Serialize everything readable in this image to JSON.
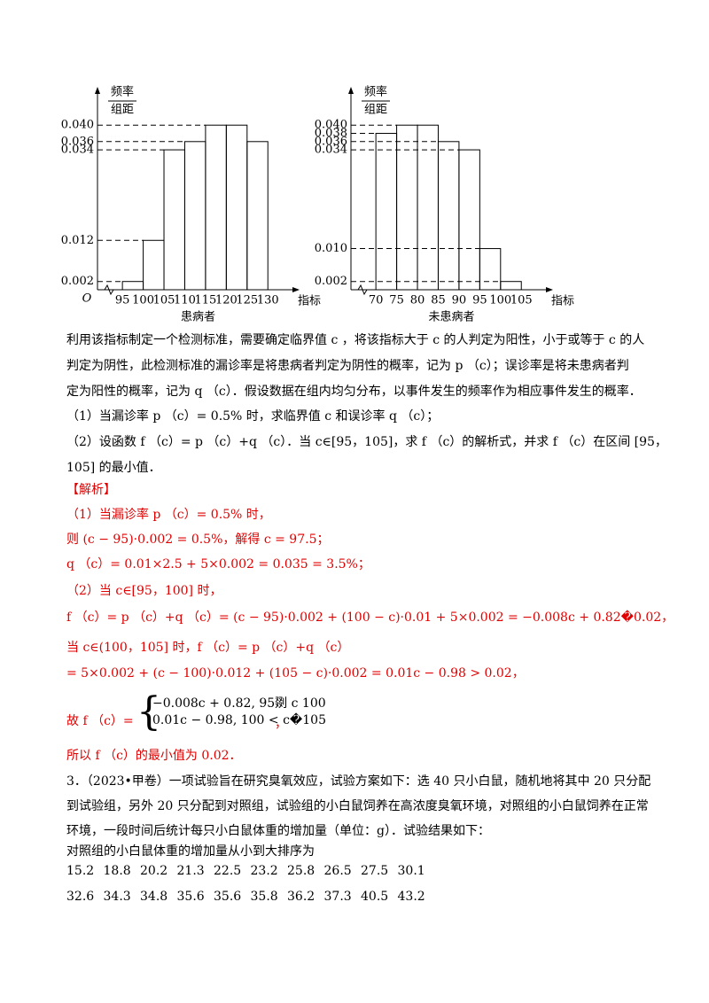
{
  "chart_data": [
    {
      "type": "histogram",
      "y_label_top": "频率",
      "y_label_bottom": "组距",
      "x_label": "指标",
      "caption": "患病者",
      "origin": "O",
      "bins": [
        95,
        100,
        105,
        110,
        115,
        120,
        125,
        130
      ],
      "values": [
        0.002,
        0.012,
        0.034,
        0.036,
        0.04,
        0.04,
        0.036
      ],
      "xlim": [
        89,
        134
      ],
      "ylim": [
        0,
        0.045
      ],
      "yticks": [
        0.002,
        0.012,
        0.034,
        0.036,
        {
          "value": 0.04,
          "label": "0.040"
        }
      ]
    },
    {
      "type": "histogram",
      "y_label_top": "频率",
      "y_label_bottom": "组距",
      "x_label": "指标",
      "caption": "未患病者",
      "bins": [
        70,
        75,
        80,
        85,
        90,
        95,
        100,
        105
      ],
      "values": [
        0.038,
        0.04,
        0.04,
        0.036,
        0.034,
        0.01,
        0.002
      ],
      "xlim": [
        64,
        109
      ],
      "ylim": [
        0,
        0.045
      ],
      "yticks": [
        0.002,
        {
          "value": 0.01,
          "label": "0.010"
        },
        0.034,
        0.036,
        0.038,
        {
          "value": 0.04,
          "label": "0.040"
        }
      ]
    }
  ],
  "problem": {
    "lines": [
      "利用该指标制定一个检测标准，需要确定临界值 c ，将该指标大于 c 的人判定为阳性，小于或等于 c 的人",
      "判定为阴性，此检测标准的漏诊率是将患病者判定为阴性的概率，记为 p （c）；误诊率是将未患病者判",
      "定为阳性的概率，记为 q （c）．假设数据在组内均匀分布，以事件发生的频率作为相应事件发生的概率．",
      "（1）当漏诊率 p （c）= 0.5% 时，求临界值 c 和误诊率 q （c）；",
      "（2）设函数 f （c）= p （c）+q （c）．当 c∈[95，105]，求 f （c）的解析式，并求 f （c）在区间 [95，",
      "105] 的最小值．"
    ]
  },
  "solution": {
    "heading": "【解析】",
    "lines": [
      "（1）当漏诊率 p （c）= 0.5% 时，",
      "则 (c − 95)·0.002 = 0.5%，解得 c = 97.5；",
      "q （c）= 0.01×2.5 + 5×0.002 = 0.035 = 3.5%；",
      "（2）当 c∈[95，100] 时，",
      "f （c）= p （c）+q （c）= (c − 95)·0.002 + (100 − c)·0.01 + 5×0.002 = −0.008c + 0.82�0.02，",
      "当 c∈(100，105] 时，f （c）= p （c）+q （c）",
      "= 5×0.002 + (c − 100)·0.012 + (105 − c)·0.002 = 0.01c − 0.98 > 0.02，"
    ],
    "piecewise": {
      "prefix": "故 f （c）=",
      "cases": [
        "−0.008c + 0.82, 95剟 c 100",
        "0.01c − 0.98, 100 < c�105"
      ],
      "suffix": "，"
    },
    "conclusion": "所以 f （c）的最小值为 0.02．"
  },
  "problem3": {
    "lines": [
      "3．（2023•甲卷）一项试验旨在研究臭氧效应，试验方案如下：选 40 只小白鼠，随机地将其中 20 只分配",
      "到试验组，另外 20 只分配到对照组，试验组的小白鼠饲养在高浓度臭氧环境，对照组的小白鼠饲养在正常",
      "环境，一段时间后统计每只小白鼠体重的增加量（单位：g）．试验结果如下：",
      "对照组的小白鼠体重的增加量从小到大排序为"
    ],
    "data_rows": [
      [
        15.2,
        18.8,
        20.2,
        21.3,
        22.5,
        23.2,
        25.8,
        26.5,
        27.5,
        30.1
      ],
      [
        32.6,
        34.3,
        34.8,
        35.6,
        35.6,
        35.8,
        36.2,
        37.3,
        40.5,
        43.2
      ]
    ]
  }
}
